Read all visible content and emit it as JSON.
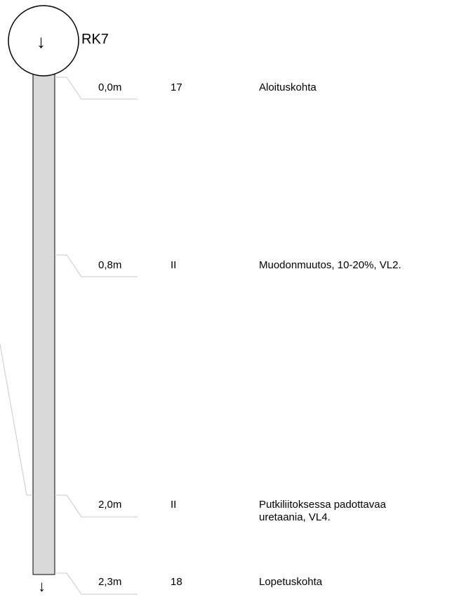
{
  "pipe": {
    "id": "RK7",
    "direction_arrow": "↓",
    "end_arrow": "↓",
    "fill_color": "#d9d9d9",
    "leader_color": "#c8c8c8"
  },
  "observations": [
    {
      "distance": "0,0m",
      "code": "17",
      "description": "Aloituskohta"
    },
    {
      "distance": "0,8m",
      "code": "II",
      "description": "Muodonmuutos, 10-20%, VL2."
    },
    {
      "distance": "2,0m",
      "code": "II",
      "description": "Putkiliitoksessa padottavaa uretaania, VL4."
    },
    {
      "distance": "2,3m",
      "code": "18",
      "description": "Lopetuskohta"
    }
  ]
}
